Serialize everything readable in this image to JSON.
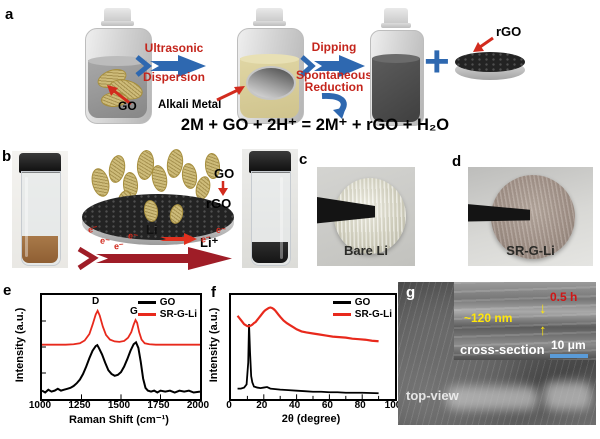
{
  "panels": {
    "a": {
      "label": "a",
      "go": "GO",
      "alkali": "Alkali Metal",
      "rgo": "rGO",
      "step1": [
        "Ultrasonic",
        "Dispersion"
      ],
      "step2": [
        "Dipping",
        "Spontaneous",
        "Reduction"
      ],
      "plus": "+",
      "equation": "2M + GO + 2H⁺ = 2M⁺ + rGO + H₂O"
    },
    "b": {
      "label": "b",
      "go": "GO",
      "rgo": "rGO",
      "li": "Li",
      "li_ion": "Li⁺",
      "electron": "e⁻"
    },
    "c": {
      "label": "c",
      "caption": "Bare Li"
    },
    "d": {
      "label": "d",
      "caption": "SR-G-Li"
    },
    "e": {
      "label": "e"
    },
    "f": {
      "label": "f"
    },
    "g": {
      "label": "g",
      "time": "0.5 h",
      "thickness": "~120 nm",
      "arrow_down": "↓",
      "arrow_up": "↑",
      "section": "cross-section",
      "scale": "10 μm",
      "view": "top-view"
    }
  },
  "colors": {
    "accent_blue": "#2e68b0",
    "accent_red": "#c4251c",
    "dark_red_arrow": "#9f1d27",
    "go_flake": "#cdbb79",
    "sem_yellow": "#ffe60a",
    "scalebar_blue": "#5a9bd8"
  },
  "chart_data": [
    {
      "type": "line",
      "title": "",
      "xlabel": "Raman Shift (cm⁻¹)",
      "ylabel": "Intensity (a.u.)",
      "xlim": [
        1000,
        2000
      ],
      "ylim": [
        0,
        1.12
      ],
      "xticks": [
        "1000",
        "1250",
        "1500",
        "1750",
        "2000"
      ],
      "grid": false,
      "legend_position": "top-right",
      "annotations": [
        "D",
        "G"
      ],
      "annotation_x": [
        1350,
        1590
      ],
      "series": [
        {
          "name": "GO",
          "color": "#000000",
          "x": [
            1000,
            1020,
            1040,
            1060,
            1080,
            1100,
            1120,
            1140,
            1160,
            1180,
            1200,
            1220,
            1240,
            1260,
            1280,
            1300,
            1320,
            1340,
            1350,
            1360,
            1380,
            1400,
            1420,
            1440,
            1460,
            1480,
            1500,
            1520,
            1540,
            1560,
            1580,
            1595,
            1610,
            1625,
            1640,
            1655,
            1670,
            1690,
            1710,
            1730,
            1750,
            1780,
            1810,
            1840,
            1870,
            1900,
            1930,
            1960,
            2000
          ],
          "y": [
            0.09,
            0.07,
            0.1,
            0.08,
            0.09,
            0.11,
            0.09,
            0.1,
            0.11,
            0.12,
            0.14,
            0.17,
            0.21,
            0.27,
            0.35,
            0.44,
            0.52,
            0.57,
            0.58,
            0.55,
            0.48,
            0.39,
            0.31,
            0.27,
            0.25,
            0.26,
            0.29,
            0.35,
            0.43,
            0.52,
            0.59,
            0.61,
            0.55,
            0.4,
            0.22,
            0.12,
            0.09,
            0.08,
            0.09,
            0.07,
            0.09,
            0.08,
            0.09,
            0.07,
            0.09,
            0.08,
            0.09,
            0.07,
            0.08
          ]
        },
        {
          "name": "SR-G-Li",
          "color": "#e8291c",
          "x": [
            1000,
            1050,
            1100,
            1150,
            1200,
            1240,
            1270,
            1300,
            1320,
            1340,
            1352,
            1365,
            1385,
            1405,
            1430,
            1460,
            1490,
            1520,
            1545,
            1565,
            1580,
            1592,
            1602,
            1615,
            1630,
            1650,
            1680,
            1720,
            1760,
            1800,
            1850,
            1900,
            1950,
            2000
          ],
          "y": [
            0.585,
            0.585,
            0.585,
            0.585,
            0.59,
            0.6,
            0.63,
            0.7,
            0.8,
            0.91,
            0.95,
            0.9,
            0.78,
            0.69,
            0.64,
            0.62,
            0.615,
            0.625,
            0.66,
            0.72,
            0.8,
            0.85,
            0.82,
            0.72,
            0.64,
            0.6,
            0.59,
            0.585,
            0.585,
            0.585,
            0.585,
            0.585,
            0.585,
            0.585
          ]
        }
      ]
    },
    {
      "type": "line",
      "title": "",
      "xlabel": "2θ (degree)",
      "ylabel": "Intensity (a.u.)",
      "xlim": [
        0,
        100
      ],
      "ylim": [
        0,
        1.0
      ],
      "xticks": [
        "0",
        "20",
        "40",
        "60",
        "80",
        "100"
      ],
      "grid": false,
      "legend_position": "top-right",
      "annotations": [],
      "series": [
        {
          "name": "GO",
          "color": "#000000",
          "x": [
            4,
            6,
            8,
            9.5,
            10.5,
            11,
            11.6,
            12.3,
            13,
            14,
            16,
            18,
            20,
            22,
            24,
            27,
            30,
            35,
            40,
            45,
            50,
            55,
            60,
            65,
            70,
            75,
            80,
            85,
            90
          ],
          "y": [
            0.1,
            0.1,
            0.11,
            0.14,
            0.35,
            0.72,
            0.45,
            0.22,
            0.16,
            0.12,
            0.11,
            0.105,
            0.11,
            0.115,
            0.1,
            0.095,
            0.09,
            0.085,
            0.08,
            0.075,
            0.07,
            0.07,
            0.065,
            0.065,
            0.06,
            0.06,
            0.06,
            0.058,
            0.055
          ]
        },
        {
          "name": "SR-G-Li",
          "color": "#e8291c",
          "x": [
            4,
            5,
            6,
            7,
            8,
            9,
            10,
            11,
            12,
            13,
            14,
            15,
            16,
            17,
            18,
            19,
            20,
            21,
            22,
            23,
            24,
            25,
            26,
            27,
            28,
            29,
            30,
            32,
            34,
            36,
            38,
            40,
            43,
            46,
            50,
            54,
            58,
            62,
            66,
            70,
            74,
            78,
            82,
            86,
            90
          ],
          "y": [
            0.8,
            0.78,
            0.76,
            0.74,
            0.72,
            0.71,
            0.7,
            0.7,
            0.705,
            0.715,
            0.73,
            0.74,
            0.76,
            0.78,
            0.8,
            0.82,
            0.84,
            0.855,
            0.865,
            0.875,
            0.88,
            0.875,
            0.865,
            0.85,
            0.83,
            0.81,
            0.79,
            0.755,
            0.73,
            0.71,
            0.69,
            0.67,
            0.65,
            0.64,
            0.63,
            0.62,
            0.61,
            0.6,
            0.595,
            0.59,
            0.58,
            0.575,
            0.57,
            0.56,
            0.555
          ]
        }
      ]
    }
  ]
}
